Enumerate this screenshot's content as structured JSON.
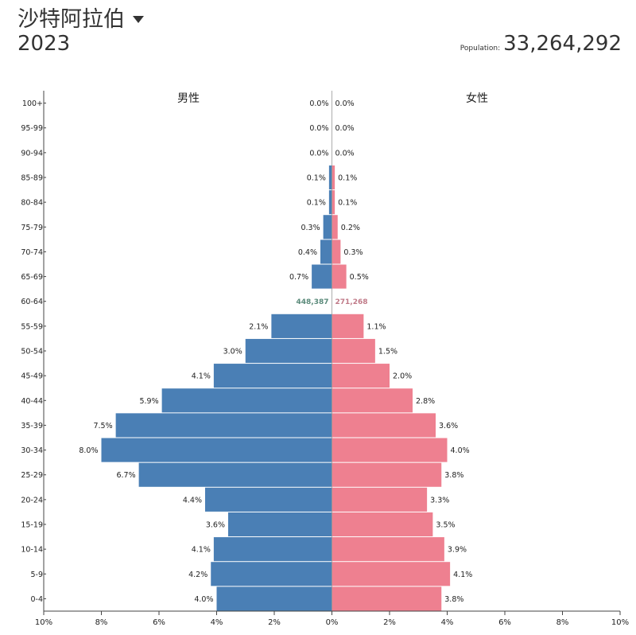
{
  "header": {
    "country": "沙特阿拉伯",
    "year": "2023",
    "population_label": "Population:",
    "population_value": "33,264,292"
  },
  "chart_data": {
    "type": "bar",
    "orientation": "horizontal-diverging",
    "categories": [
      "0-4",
      "5-9",
      "10-14",
      "15-19",
      "20-24",
      "25-29",
      "30-34",
      "35-39",
      "40-44",
      "45-49",
      "50-54",
      "55-59",
      "60-64",
      "65-69",
      "70-74",
      "75-79",
      "80-84",
      "85-89",
      "90-94",
      "95-99",
      "100+"
    ],
    "series": [
      {
        "name": "男性",
        "side": "left",
        "color": "#4a7fb5",
        "values": [
          4.0,
          4.2,
          4.1,
          3.6,
          4.4,
          6.7,
          8.0,
          7.5,
          5.9,
          4.1,
          3.0,
          2.1,
          null,
          0.7,
          0.4,
          0.3,
          0.1,
          0.1,
          0.0,
          0.0,
          0.0
        ],
        "labels": [
          "4.0%",
          "4.2%",
          "4.1%",
          "3.6%",
          "4.4%",
          "6.7%",
          "8.0%",
          "7.5%",
          "5.9%",
          "4.1%",
          "3.0%",
          "2.1%",
          "448,387",
          "0.7%",
          "0.4%",
          "0.3%",
          "0.1%",
          "0.1%",
          "0.0%",
          "0.0%",
          "0.0%"
        ]
      },
      {
        "name": "女性",
        "side": "right",
        "color": "#ee8090",
        "values": [
          3.8,
          4.1,
          3.9,
          3.5,
          3.3,
          3.8,
          4.0,
          3.6,
          2.8,
          2.0,
          1.5,
          1.1,
          null,
          0.5,
          0.3,
          0.2,
          0.1,
          0.1,
          0.0,
          0.0,
          0.0
        ],
        "labels": [
          "3.8%",
          "4.1%",
          "3.9%",
          "3.5%",
          "3.3%",
          "3.8%",
          "4.0%",
          "3.6%",
          "2.8%",
          "2.0%",
          "1.5%",
          "1.1%",
          "271,268",
          "0.5%",
          "0.3%",
          "0.2%",
          "0.1%",
          "0.1%",
          "0.0%",
          "0.0%",
          "0.0%"
        ]
      }
    ],
    "highlight": {
      "category": "60-64",
      "male_count": "448,387",
      "female_count": "271,268",
      "male_color": "#5a8a7a",
      "female_color": "#c07a88"
    },
    "xlim": [
      -10,
      10
    ],
    "x_ticks": [
      -10,
      -8,
      -6,
      -4,
      -2,
      0,
      2,
      4,
      6,
      8,
      10
    ],
    "x_tick_labels": [
      "10%",
      "8%",
      "6%",
      "4%",
      "2%",
      "0%",
      "2%",
      "4%",
      "6%",
      "8%",
      "10%"
    ],
    "grid": false,
    "legend": "top"
  }
}
